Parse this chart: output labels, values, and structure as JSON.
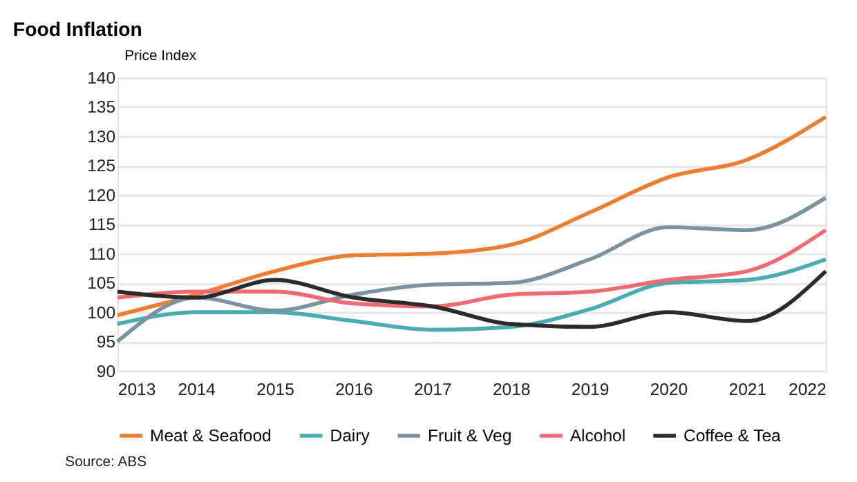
{
  "chart_data": {
    "type": "line",
    "title": "Food Inflation",
    "ylabel": "Price Index",
    "x": [
      2013,
      2014,
      2015,
      2016,
      2017,
      2018,
      2019,
      2020,
      2021,
      2022
    ],
    "xlim": [
      2013,
      2022
    ],
    "xticks": [
      2013,
      2014,
      2015,
      2016,
      2017,
      2018,
      2019,
      2020,
      2021,
      2022
    ],
    "ylim": [
      90,
      140
    ],
    "yticks": [
      90,
      95,
      100,
      105,
      110,
      115,
      120,
      125,
      130,
      135,
      140
    ],
    "grid": "y",
    "legend": "bottom",
    "marker": "none",
    "line_style": "solid",
    "annotations": [
      "Source: ABS"
    ],
    "series": [
      {
        "name": "Meat & Seafood",
        "color": "#ed7d31",
        "values": [
          99.5,
          103,
          107,
          109.7,
          110,
          111.5,
          117,
          123,
          126,
          133.3
        ]
      },
      {
        "name": "Dairy",
        "color": "#4bacb0",
        "values": [
          98,
          100,
          100,
          98.5,
          97,
          97.5,
          100.5,
          105,
          105.5,
          109
        ]
      },
      {
        "name": "Fruit & Veg",
        "color": "#7993a0",
        "values": [
          95,
          102.5,
          100.3,
          103,
          104.7,
          105,
          109,
          114.5,
          114,
          119.5
        ]
      },
      {
        "name": "Alcohol",
        "color": "#ee6b73",
        "values": [
          102.5,
          103.5,
          103.5,
          101.5,
          101,
          103,
          103.5,
          105.5,
          107,
          114
        ]
      },
      {
        "name": "Coffee & Tea",
        "color": "#2b2b2b",
        "values": [
          103.5,
          102.5,
          105.5,
          102.5,
          101,
          98,
          97.5,
          100,
          98.5,
          107
        ]
      }
    ]
  }
}
